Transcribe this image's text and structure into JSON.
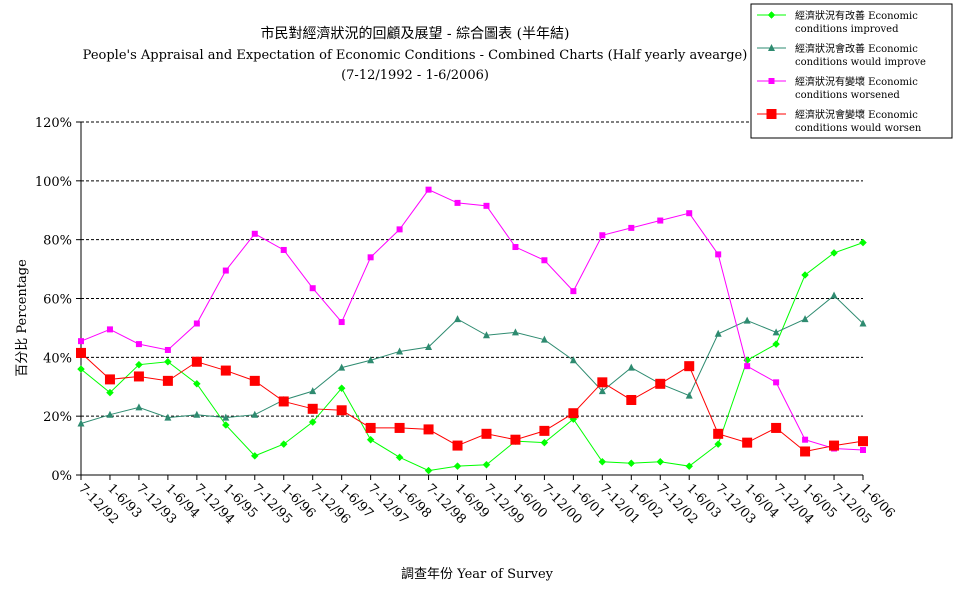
{
  "chart_data": {
    "type": "line",
    "title": "市民對經濟狀況的回顧及展望 - 綜合圖表 (半年結)",
    "subtitle": "People's Appraisal and Expectation of Economic Conditions - Combined Charts  (Half yearly avearge)",
    "period": "(7-12/1992 - 1-6/2006)",
    "xlabel": "調查年份 Year of Survey",
    "ylabel": "百分比 Percentage",
    "ylim": [
      0,
      120
    ],
    "yticks": [
      "0%",
      "20%",
      "40%",
      "60%",
      "80%",
      "100%",
      "120%"
    ],
    "grid": true,
    "legend_position": "top-right",
    "categories": [
      "7-12/92",
      "1-6/93",
      "7-12/93",
      "1-6/94",
      "7-12/94",
      "1-6/95",
      "7-12/95",
      "1-6/96",
      "7-12/96",
      "1-6/97",
      "7-12/97",
      "1-6/98",
      "7-12/98",
      "1-6/99",
      "7-12/99",
      "1-6/00",
      "7-12/00",
      "1-6/01",
      "7-12/01",
      "1-6/02",
      "7-12/02",
      "1-6/03",
      "7-12/03",
      "1-6/04",
      "7-12/04",
      "1-6/05",
      "7-12/05",
      "1-6/06"
    ],
    "series": [
      {
        "name": "經濟狀況有改善 Economic conditions improved",
        "legend_lines": [
          "經濟狀況有改善 Economic",
          "conditions improved"
        ],
        "color": "#00ff00",
        "marker": "diamond",
        "values": [
          36,
          28,
          37.5,
          38.5,
          31,
          17,
          6.5,
          10.5,
          18,
          29.5,
          12,
          6,
          1.5,
          3,
          3.5,
          11.5,
          11,
          19,
          4.5,
          4,
          4.5,
          3,
          10.5,
          39,
          44.5,
          68,
          75.5,
          79
        ]
      },
      {
        "name": "經濟狀況會改善 Economic conditions would improve",
        "legend_lines": [
          "經濟狀況會改善 Economic",
          "conditions would improve"
        ],
        "color": "#2e8b70",
        "marker": "triangle",
        "values": [
          17.5,
          20.5,
          23,
          19.5,
          20.5,
          19.5,
          20.5,
          25.5,
          28.5,
          36.5,
          39,
          42,
          43.5,
          53,
          47.5,
          48.5,
          46,
          39,
          28.5,
          36.5,
          31,
          27,
          48,
          52.5,
          48.5,
          53,
          61,
          51.5
        ]
      },
      {
        "name": "經濟狀況有變壞 Economic conditions worsened",
        "legend_lines": [
          "經濟狀況有變壞 Economic",
          "conditions worsened"
        ],
        "color": "#ff00ff",
        "marker": "square",
        "values": [
          45.5,
          49.5,
          44.5,
          42.5,
          51.5,
          69.5,
          82,
          76.5,
          63.5,
          52,
          74,
          83.5,
          97,
          92.5,
          91.5,
          77.5,
          73,
          62.5,
          81.5,
          84,
          86.5,
          89,
          75,
          37,
          31.5,
          12,
          9,
          8.5
        ]
      },
      {
        "name": "經濟狀況會變壞 Economic conditions would worsen",
        "legend_lines": [
          "經濟狀況會變壞 Economic",
          "conditions would worsen"
        ],
        "color": "#ff0000",
        "marker": "square-large",
        "values": [
          41.5,
          32.5,
          33.5,
          32,
          38.5,
          35.5,
          32,
          25,
          22.5,
          22,
          16,
          16,
          15.5,
          10,
          14,
          12,
          15,
          21,
          31.5,
          25.5,
          31,
          37,
          14,
          11,
          16,
          8,
          10,
          11.5
        ]
      }
    ]
  }
}
